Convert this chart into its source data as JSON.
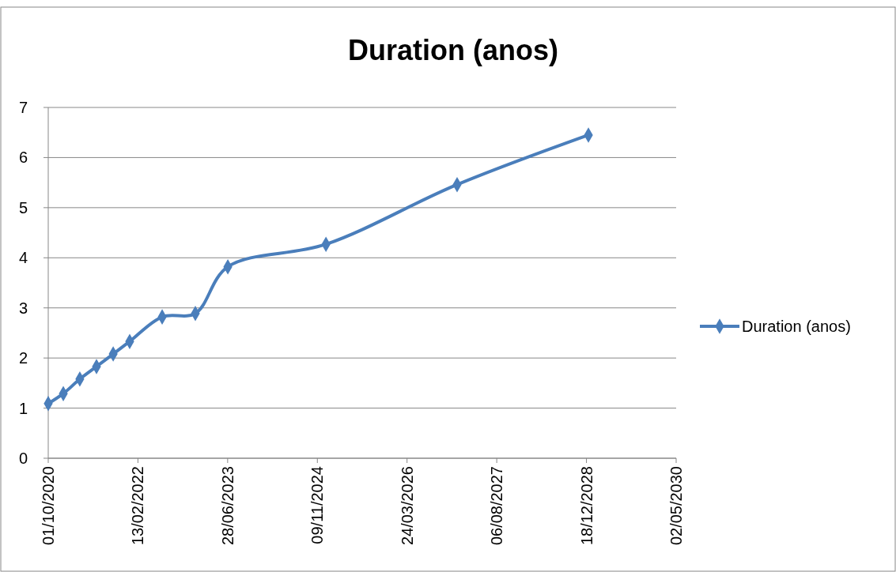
{
  "chart_data": {
    "type": "line",
    "title": "Duration (anos)",
    "x": [
      "2020-10-01",
      "2020-12-24",
      "2021-03-26",
      "2021-06-27",
      "2021-09-28",
      "2021-12-29",
      "2022-06-28",
      "2022-12-30",
      "2023-06-29",
      "2024-12-27",
      "2026-12-28",
      "2028-12-29"
    ],
    "series": [
      {
        "name": "Duration (anos)",
        "color": "#4a7ebb",
        "values": [
          1.09,
          1.29,
          1.58,
          1.83,
          2.08,
          2.33,
          2.82,
          2.89,
          3.82,
          4.27,
          5.46,
          6.45
        ]
      }
    ],
    "xlim": [
      "2020-10-01",
      "2030-05-02"
    ],
    "xticks": [
      {
        "value": "2020-10-01",
        "label": "01/10/2020"
      },
      {
        "value": "2022-02-13",
        "label": "13/02/2022"
      },
      {
        "value": "2023-06-28",
        "label": "28/06/2023"
      },
      {
        "value": "2024-11-09",
        "label": "09/11/2024"
      },
      {
        "value": "2026-03-24",
        "label": "24/03/2026"
      },
      {
        "value": "2027-08-06",
        "label": "06/08/2027"
      },
      {
        "value": "2028-12-18",
        "label": "18/12/2028"
      },
      {
        "value": "2030-05-02",
        "label": "02/05/2030"
      }
    ],
    "ylim": [
      0,
      7
    ],
    "yticks": [
      0,
      1,
      2,
      3,
      4,
      5,
      6,
      7
    ],
    "grid": "y",
    "legend": "right",
    "marker": "diamond",
    "line_style": "solid"
  }
}
